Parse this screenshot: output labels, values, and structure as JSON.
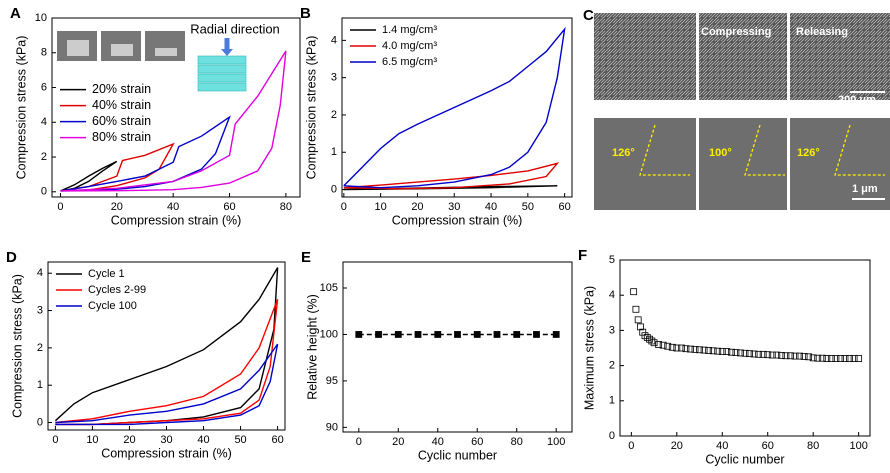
{
  "chart_data": [
    {
      "type": "line",
      "panel": "A",
      "xlabel": "Compression strain (%)",
      "ylabel": "Compression stress (kPa)",
      "annotation": "Radial direction",
      "xlim": [
        -3,
        85
      ],
      "xticks": [
        0,
        20,
        40,
        60,
        80
      ],
      "ylim": [
        -0.3,
        10
      ],
      "yticks": [
        0,
        2,
        4,
        6,
        8,
        10
      ],
      "legend": "center left",
      "series": [
        {
          "name": "20% strain",
          "color": "#000000",
          "x": [
            0,
            5,
            10,
            15,
            20,
            15,
            10,
            5,
            0
          ],
          "values": [
            0.05,
            0.4,
            0.9,
            1.35,
            1.75,
            1.2,
            0.6,
            0.2,
            0.05
          ]
        },
        {
          "name": "40% strain",
          "color": "#e00000",
          "x": [
            0,
            10,
            20,
            22,
            30,
            40,
            35,
            30,
            20,
            10,
            0
          ],
          "values": [
            0.05,
            0.3,
            0.9,
            1.8,
            2.1,
            2.75,
            1.3,
            0.8,
            0.35,
            0.1,
            0.05
          ]
        },
        {
          "name": "60% strain",
          "color": "#0000cc",
          "x": [
            0,
            10,
            20,
            30,
            40,
            42,
            50,
            60,
            55,
            50,
            40,
            30,
            20,
            10,
            0
          ],
          "values": [
            0.05,
            0.3,
            0.6,
            0.9,
            1.7,
            2.6,
            3.2,
            4.3,
            2.2,
            1.3,
            0.6,
            0.3,
            0.15,
            0.07,
            0.05
          ]
        },
        {
          "name": "80% strain",
          "color": "#e000e0",
          "x": [
            0,
            20,
            40,
            50,
            60,
            62,
            70,
            80,
            78,
            75,
            70,
            60,
            50,
            40,
            20,
            0
          ],
          "values": [
            0.05,
            0.2,
            0.6,
            1.2,
            2.1,
            3.9,
            5.5,
            8.1,
            5,
            2.5,
            1.2,
            0.5,
            0.25,
            0.12,
            0.06,
            0.05
          ]
        }
      ]
    },
    {
      "type": "line",
      "panel": "B",
      "xlabel": "Compression strain (%)",
      "ylabel": "Compression stress (kPa)",
      "xlim": [
        -0.5,
        62
      ],
      "xticks": [
        0,
        10,
        20,
        30,
        40,
        50,
        60
      ],
      "ylim": [
        -0.2,
        4.6
      ],
      "yticks": [
        0,
        1,
        2,
        3,
        4
      ],
      "legend": "upper left",
      "series": [
        {
          "name": "1.4 mg/cm³",
          "color": "#000000",
          "x": [
            0,
            20,
            40,
            58,
            40,
            20,
            0
          ],
          "values": [
            0,
            0.02,
            0.05,
            0.1,
            0.08,
            0.04,
            0
          ]
        },
        {
          "name": "4.0 mg/cm³",
          "color": "#e00000",
          "x": [
            0,
            10,
            20,
            30,
            40,
            50,
            58,
            55,
            45,
            30,
            15,
            0
          ],
          "values": [
            0.05,
            0.12,
            0.2,
            0.28,
            0.38,
            0.5,
            0.7,
            0.35,
            0.15,
            0.05,
            0.02,
            0.05
          ]
        },
        {
          "name": "6.5 mg/cm³",
          "color": "#0000cc",
          "x": [
            0,
            5,
            10,
            15,
            20,
            30,
            40,
            45,
            50,
            55,
            60,
            58,
            55,
            50,
            45,
            40,
            30,
            20,
            10,
            0
          ],
          "values": [
            0.1,
            0.6,
            1.1,
            1.5,
            1.75,
            2.2,
            2.65,
            2.9,
            3.3,
            3.7,
            4.3,
            3,
            1.8,
            1,
            0.6,
            0.4,
            0.2,
            0.1,
            0.05,
            0.1
          ]
        }
      ]
    },
    {
      "type": "line",
      "panel": "D",
      "xlabel": "Compression strain (%)",
      "ylabel": "Compression stress (kPa)",
      "xlim": [
        -2,
        62
      ],
      "xticks": [
        0,
        10,
        20,
        30,
        40,
        50,
        60
      ],
      "ylim": [
        -0.2,
        4.3
      ],
      "yticks": [
        0,
        1,
        2,
        3,
        4
      ],
      "legend": "upper left",
      "series": [
        {
          "name": "Cycle 1",
          "color": "#000000",
          "x": [
            0,
            5,
            10,
            20,
            30,
            40,
            50,
            55,
            60,
            59,
            55,
            50,
            40,
            30,
            20,
            10,
            0
          ],
          "values": [
            0.05,
            0.5,
            0.8,
            1.15,
            1.5,
            1.95,
            2.7,
            3.3,
            4.15,
            2.5,
            0.9,
            0.4,
            0.15,
            0.05,
            0,
            -0.05,
            -0.05
          ]
        },
        {
          "name": "Cycles 2-99",
          "color": "#ff0000",
          "x": [
            0,
            10,
            20,
            30,
            40,
            50,
            55,
            60,
            58,
            55,
            50,
            40,
            30,
            20,
            10,
            0
          ],
          "values": [
            0,
            0.1,
            0.3,
            0.45,
            0.7,
            1.3,
            2,
            3.3,
            1.5,
            0.6,
            0.25,
            0.1,
            0.05,
            0,
            -0.05,
            -0.05
          ]
        },
        {
          "name": "Cycle 100",
          "color": "#0000cc",
          "x": [
            0,
            10,
            20,
            30,
            40,
            50,
            55,
            60,
            58,
            55,
            50,
            40,
            30,
            20,
            10,
            0
          ],
          "values": [
            0,
            0.05,
            0.2,
            0.3,
            0.5,
            0.9,
            1.4,
            2.1,
            1.1,
            0.45,
            0.2,
            0.05,
            0,
            -0.05,
            -0.05,
            -0.05
          ]
        }
      ]
    },
    {
      "type": "line",
      "panel": "E",
      "xlabel": "Cyclic number",
      "ylabel": "Relative height (%)",
      "xlim": [
        -8,
        108
      ],
      "xticks": [
        0,
        20,
        40,
        60,
        80,
        100
      ],
      "ylim": [
        89.5,
        107.8
      ],
      "yticks": [
        90,
        95,
        100,
        105
      ],
      "x": [
        0,
        10,
        20,
        30,
        40,
        50,
        60,
        70,
        80,
        90,
        100
      ],
      "series": [
        {
          "color": "#000000",
          "marker": "square",
          "line_style": "dashed",
          "values": [
            100,
            100,
            100,
            100,
            100,
            100,
            100,
            100,
            100,
            100,
            100
          ]
        }
      ]
    },
    {
      "type": "scatter",
      "panel": "F",
      "xlabel": "Cyclic number",
      "ylabel": "Maximum stress (kPa)",
      "xlim": [
        -5,
        105
      ],
      "xticks": [
        0,
        20,
        40,
        60,
        80,
        100
      ],
      "ylim": [
        0,
        5
      ],
      "yticks": [
        0,
        1,
        2,
        3,
        4,
        5
      ],
      "x": [
        1,
        2,
        3,
        4,
        5,
        6,
        7,
        8,
        9,
        10,
        12,
        14,
        16,
        18,
        20,
        22,
        24,
        26,
        28,
        30,
        32,
        34,
        36,
        38,
        40,
        42,
        44,
        46,
        48,
        50,
        52,
        54,
        56,
        58,
        60,
        62,
        64,
        66,
        68,
        70,
        72,
        74,
        76,
        78,
        80,
        82,
        84,
        86,
        88,
        90,
        92,
        94,
        96,
        98,
        100
      ],
      "series": [
        {
          "color": "#000000",
          "marker": "open-square",
          "values": [
            4.1,
            3.6,
            3.3,
            3.1,
            2.95,
            2.85,
            2.8,
            2.75,
            2.7,
            2.65,
            2.6,
            2.58,
            2.55,
            2.52,
            2.5,
            2.5,
            2.48,
            2.47,
            2.46,
            2.45,
            2.44,
            2.43,
            2.42,
            2.41,
            2.4,
            2.4,
            2.38,
            2.37,
            2.36,
            2.35,
            2.34,
            2.33,
            2.32,
            2.32,
            2.31,
            2.3,
            2.3,
            2.29,
            2.28,
            2.28,
            2.27,
            2.27,
            2.26,
            2.25,
            2.22,
            2.21,
            2.21,
            2.2,
            2.2,
            2.2,
            2.2,
            2.2,
            2.2,
            2.2,
            2.2
          ]
        }
      ]
    }
  ],
  "figure_c": {
    "panel": "C",
    "labels": [
      "Compressing",
      "Releasing"
    ],
    "scale_bars": [
      "200 μm",
      "1 μm"
    ],
    "angles": [
      "126°",
      "100°",
      "126°"
    ]
  }
}
